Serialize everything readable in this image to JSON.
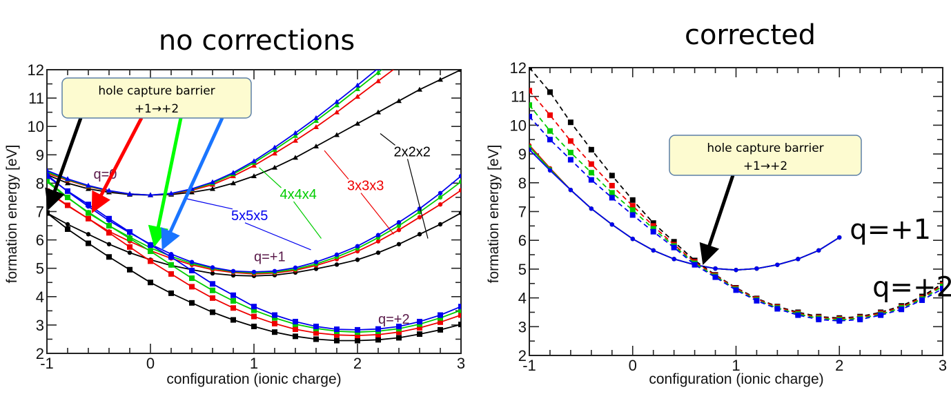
{
  "chart_data": [
    {
      "id": "left",
      "type": "line",
      "title": "no corrections",
      "xlabel": "configuration (ionic charge)",
      "ylabel": "formation energy [eV]",
      "xlim": [
        -1,
        3
      ],
      "ylim": [
        2,
        12
      ],
      "xticks": [
        -1,
        0,
        1,
        2,
        3
      ],
      "yticks": [
        2,
        3,
        4,
        5,
        6,
        7,
        8,
        9,
        10,
        11,
        12
      ],
      "grid": false,
      "callout": {
        "line1": "hole capture barrier",
        "line2": "+1→+2"
      },
      "state_labels": [
        {
          "text": "q=0",
          "x": -0.55,
          "y": 8.15
        },
        {
          "text": "q=+1",
          "x": 1.0,
          "y": 5.25
        },
        {
          "text": "q=+2",
          "x": 2.2,
          "y": 3.05
        }
      ],
      "size_labels": [
        {
          "text": "5x5x5",
          "color": "#0000ee",
          "x": 0.78,
          "y": 6.7
        },
        {
          "text": "4x4x4",
          "color": "#00cc00",
          "x": 1.25,
          "y": 7.45
        },
        {
          "text": "3x3x3",
          "color": "#ee0000",
          "x": 1.9,
          "y": 7.75
        },
        {
          "text": "2x2x2",
          "color": "#000000",
          "x": 2.35,
          "y": 8.95
        }
      ],
      "x": [
        -1,
        -0.8,
        -0.6,
        -0.4,
        -0.2,
        0,
        0.2,
        0.4,
        0.6,
        0.8,
        1,
        1.2,
        1.4,
        1.6,
        1.8,
        2,
        2.2,
        2.4,
        2.6,
        2.8,
        3
      ],
      "series": [
        {
          "name": "2x2x2 q=0",
          "color": "#000000",
          "marker": "triangle",
          "style": "solid",
          "values": [
            8.3,
            8.0,
            7.8,
            7.68,
            7.6,
            7.58,
            7.6,
            7.68,
            7.8,
            8.0,
            8.25,
            8.55,
            8.9,
            9.3,
            9.7,
            10.1,
            10.5,
            10.9,
            11.3,
            11.65,
            12.0
          ]
        },
        {
          "name": "3x3x3 q=0",
          "color": "#ee0000",
          "marker": "triangle",
          "style": "solid",
          "values": [
            8.35,
            8.1,
            7.88,
            7.72,
            7.62,
            7.58,
            7.62,
            7.75,
            7.95,
            8.25,
            8.62,
            9.05,
            9.5,
            9.98,
            10.5,
            11.05,
            11.6,
            12.15,
            12.7,
            13.3,
            13.9
          ]
        },
        {
          "name": "4x4x4 q=0",
          "color": "#00cc00",
          "marker": "triangle",
          "style": "solid",
          "values": [
            8.4,
            8.13,
            7.9,
            7.73,
            7.62,
            7.58,
            7.63,
            7.78,
            8.0,
            8.32,
            8.72,
            9.18,
            9.67,
            10.2,
            10.75,
            11.32,
            11.9,
            12.5,
            13.1,
            13.7,
            14.3
          ]
        },
        {
          "name": "5x5x5 q=0",
          "color": "#0000ee",
          "marker": "triangle",
          "style": "solid",
          "values": [
            8.45,
            8.15,
            7.92,
            7.74,
            7.62,
            7.58,
            7.64,
            7.8,
            8.04,
            8.37,
            8.78,
            9.26,
            9.77,
            10.3,
            10.87,
            11.45,
            12.05,
            12.65,
            13.25,
            13.85,
            14.45
          ]
        },
        {
          "name": "2x2x2 q=+1",
          "color": "#000000",
          "marker": "circle",
          "style": "solid",
          "values": [
            6.95,
            6.55,
            6.2,
            5.85,
            5.55,
            5.3,
            5.1,
            4.95,
            4.82,
            4.75,
            4.73,
            4.76,
            4.85,
            4.98,
            5.13,
            5.3,
            5.55,
            5.85,
            6.2,
            6.55,
            6.95
          ]
        },
        {
          "name": "3x3x3 q=+1",
          "color": "#ee0000",
          "marker": "circle",
          "style": "solid",
          "values": [
            7.7,
            7.2,
            6.75,
            6.3,
            5.95,
            5.62,
            5.35,
            5.12,
            4.95,
            4.85,
            4.8,
            4.83,
            4.93,
            5.1,
            5.32,
            5.6,
            5.95,
            6.35,
            6.8,
            7.25,
            7.75
          ]
        },
        {
          "name": "4x4x4 q=+1",
          "color": "#00cc00",
          "marker": "circle",
          "style": "solid",
          "values": [
            8.05,
            7.48,
            6.98,
            6.5,
            6.1,
            5.72,
            5.42,
            5.17,
            5.0,
            4.88,
            4.84,
            4.86,
            4.97,
            5.15,
            5.4,
            5.7,
            6.08,
            6.5,
            6.98,
            7.5,
            8.05
          ]
        },
        {
          "name": "5x5x5 q=+1",
          "color": "#0000ee",
          "marker": "circle",
          "style": "solid",
          "values": [
            8.3,
            7.7,
            7.18,
            6.68,
            6.25,
            5.85,
            5.5,
            5.22,
            5.03,
            4.9,
            4.87,
            4.9,
            5.02,
            5.22,
            5.48,
            5.78,
            6.17,
            6.62,
            7.1,
            7.65,
            8.25
          ]
        },
        {
          "name": "2x2x2 q=+2",
          "color": "#000000",
          "marker": "square",
          "style": "solid",
          "values": [
            6.95,
            6.38,
            5.88,
            5.4,
            4.95,
            4.5,
            4.12,
            3.78,
            3.45,
            3.18,
            2.95,
            2.75,
            2.6,
            2.5,
            2.45,
            2.45,
            2.48,
            2.55,
            2.68,
            2.83,
            3.02
          ]
        },
        {
          "name": "3x3x3 q=+2",
          "color": "#ee0000",
          "marker": "square",
          "style": "solid",
          "values": [
            7.72,
            7.22,
            6.75,
            6.25,
            5.75,
            5.25,
            4.8,
            4.35,
            3.95,
            3.6,
            3.3,
            3.05,
            2.85,
            2.72,
            2.65,
            2.63,
            2.66,
            2.75,
            2.9,
            3.1,
            3.35
          ]
        },
        {
          "name": "4x4x4 q=+2",
          "color": "#00cc00",
          "marker": "square",
          "style": "solid",
          "values": [
            8.1,
            7.5,
            6.95,
            6.5,
            6.05,
            5.6,
            5.12,
            4.65,
            4.22,
            3.85,
            3.52,
            3.25,
            3.03,
            2.88,
            2.78,
            2.75,
            2.78,
            2.87,
            3.03,
            3.25,
            3.52
          ]
        },
        {
          "name": "5x5x5 q=+2",
          "color": "#0000ee",
          "marker": "square",
          "style": "solid",
          "values": [
            8.25,
            7.72,
            7.25,
            6.75,
            6.28,
            5.82,
            5.4,
            4.92,
            4.45,
            4.05,
            3.65,
            3.35,
            3.12,
            2.95,
            2.85,
            2.83,
            2.86,
            2.95,
            3.12,
            3.35,
            3.65
          ]
        }
      ],
      "callout_targets": [
        {
          "color": "#000000",
          "x": -1.0,
          "y": 6.95
        },
        {
          "color": "#ff0000",
          "x": -0.58,
          "y": 6.85
        },
        {
          "color": "#00ff00",
          "x": 0.03,
          "y": 5.65
        },
        {
          "color": "#1a75ff",
          "x": 0.1,
          "y": 5.55
        }
      ]
    },
    {
      "id": "right",
      "type": "line",
      "title": "corrected",
      "xlabel": "configuration (ionic charge)",
      "ylabel": "formation energy [eV]",
      "xlim": [
        -1,
        3
      ],
      "ylim": [
        2,
        12
      ],
      "xticks": [
        -1,
        0,
        1,
        2,
        3
      ],
      "yticks": [
        2,
        3,
        4,
        5,
        6,
        7,
        8,
        9,
        10,
        11,
        12
      ],
      "grid": false,
      "callout": {
        "line1": "hole capture barrier",
        "line2": "+1→+2"
      },
      "state_labels": [
        {
          "text": "q=+1",
          "x": 2.1,
          "y": 6.05
        },
        {
          "text": "q=+2",
          "x": 2.32,
          "y": 4.05
        }
      ],
      "callout_target": {
        "x": 0.67,
        "y": 5.05
      },
      "series": [
        {
          "name": "2x2x2 q=+1",
          "color": "#000000",
          "marker": "circle",
          "style": "solid",
          "x": [
            -1,
            -0.8,
            -0.6,
            -0.4,
            -0.2,
            0,
            0.2,
            0.4,
            0.6,
            0.8,
            1,
            1.2,
            1.4,
            1.6,
            1.8,
            2
          ],
          "values": [
            9.3,
            8.5,
            7.75,
            7.1,
            6.55,
            6.05,
            5.65,
            5.35,
            5.15,
            5.02,
            4.97,
            5.02,
            5.15,
            5.35,
            5.65,
            6.1
          ]
        },
        {
          "name": "3x3x3 q=+1",
          "color": "#ee0000",
          "marker": "circle",
          "style": "solid",
          "x": [
            -1,
            -0.8,
            -0.6,
            -0.4,
            -0.2,
            0,
            0.2,
            0.4,
            0.6,
            0.8,
            1,
            1.2,
            1.4,
            1.6,
            1.8,
            2
          ],
          "values": [
            9.3,
            8.5,
            7.75,
            7.1,
            6.55,
            6.05,
            5.65,
            5.35,
            5.15,
            5.02,
            4.97,
            5.02,
            5.15,
            5.35,
            5.65,
            6.1
          ]
        },
        {
          "name": "4x4x4 q=+1",
          "color": "#00cc00",
          "marker": "circle",
          "style": "solid",
          "x": [
            -1,
            -0.8,
            -0.6,
            -0.4,
            -0.2,
            0,
            0.2,
            0.4,
            0.6,
            0.8,
            1,
            1.2,
            1.4,
            1.6,
            1.8,
            2
          ],
          "values": [
            9.25,
            8.47,
            7.75,
            7.1,
            6.55,
            6.05,
            5.65,
            5.35,
            5.15,
            5.02,
            4.97,
            5.02,
            5.15,
            5.35,
            5.65,
            6.1
          ]
        },
        {
          "name": "5x5x5 q=+1",
          "color": "#0000ee",
          "marker": "circle",
          "style": "solid",
          "x": [
            -1,
            -0.8,
            -0.6,
            -0.4,
            -0.2,
            0,
            0.2,
            0.4,
            0.6,
            0.8,
            1,
            1.2,
            1.4,
            1.6,
            1.8,
            2
          ],
          "values": [
            9.15,
            8.43,
            7.75,
            7.1,
            6.55,
            6.05,
            5.65,
            5.35,
            5.15,
            5.02,
            4.97,
            5.02,
            5.15,
            5.35,
            5.65,
            6.1
          ]
        },
        {
          "name": "2x2x2 q=+2",
          "color": "#000000",
          "marker": "square",
          "style": "dashed",
          "x": [
            -1,
            -0.8,
            -0.6,
            -0.4,
            -0.2,
            0,
            0.2,
            0.4,
            0.6,
            0.8,
            1,
            1.2,
            1.4,
            1.6,
            1.8,
            2,
            2.2,
            2.4,
            2.6,
            2.8,
            3
          ],
          "values": [
            12.0,
            11.15,
            10.1,
            9.15,
            8.25,
            7.4,
            6.6,
            5.95,
            5.3,
            4.8,
            4.35,
            3.98,
            3.7,
            3.5,
            3.35,
            3.3,
            3.35,
            3.5,
            3.72,
            4.05,
            4.5
          ]
        },
        {
          "name": "3x3x3 q=+2",
          "color": "#ee0000",
          "marker": "square",
          "style": "dashed",
          "x": [
            -1,
            -0.8,
            -0.6,
            -0.4,
            -0.2,
            0,
            0.2,
            0.4,
            0.6,
            0.8,
            1,
            1.2,
            1.4,
            1.6,
            1.8,
            2,
            2.2,
            2.4,
            2.6,
            2.8,
            3
          ],
          "values": [
            11.2,
            10.35,
            9.45,
            8.65,
            7.9,
            7.2,
            6.5,
            5.85,
            5.25,
            4.78,
            4.33,
            3.96,
            3.68,
            3.47,
            3.32,
            3.27,
            3.32,
            3.47,
            3.68,
            4.0,
            4.45
          ]
        },
        {
          "name": "4x4x4 q=+2",
          "color": "#00cc00",
          "marker": "square",
          "style": "dashed",
          "x": [
            -1,
            -0.8,
            -0.6,
            -0.4,
            -0.2,
            0,
            0.2,
            0.4,
            0.6,
            0.8,
            1,
            1.2,
            1.4,
            1.6,
            1.8,
            2,
            2.2,
            2.4,
            2.6,
            2.8,
            3
          ],
          "values": [
            10.7,
            9.8,
            9.05,
            8.35,
            7.65,
            7.05,
            6.4,
            5.8,
            5.2,
            4.75,
            4.3,
            3.93,
            3.65,
            3.44,
            3.29,
            3.24,
            3.29,
            3.43,
            3.65,
            3.96,
            4.4
          ]
        },
        {
          "name": "5x5x5 q=+2",
          "color": "#0000ee",
          "marker": "square",
          "style": "dashed",
          "x": [
            -1,
            -0.8,
            -0.6,
            -0.4,
            -0.2,
            0,
            0.2,
            0.4,
            0.6,
            0.8,
            1,
            1.2,
            1.4,
            1.6,
            1.8,
            2,
            2.2,
            2.4,
            2.6,
            2.8,
            3
          ],
          "values": [
            10.3,
            9.5,
            8.8,
            8.1,
            7.48,
            6.88,
            6.3,
            5.75,
            5.15,
            4.72,
            4.27,
            3.9,
            3.62,
            3.4,
            3.25,
            3.2,
            3.25,
            3.4,
            3.6,
            3.92,
            4.32
          ]
        }
      ]
    }
  ]
}
